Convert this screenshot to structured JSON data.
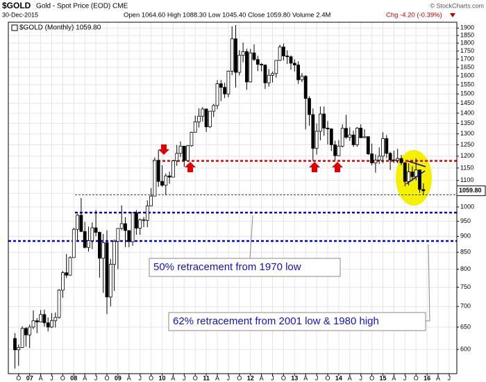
{
  "chart_data": {
    "type": "candlestick",
    "symbol": "$GOLD",
    "title": "Gold - Spot Price (EOD) CME",
    "date": "30-Dec-2015",
    "quote": "Open 1064.60 High 1088.30 Low 1045.40 Close 1059.80 Volume 2.4M",
    "change": "Chg -4.20 (-0.39%)",
    "copyright": "© StockCharts.com",
    "legend": "$GOLD (Monthly) 1059.80",
    "last_price": {
      "value": 1059.8,
      "label": "1059.80"
    },
    "categories": [
      null,
      "O",
      null,
      null,
      "07",
      null,
      null,
      "A",
      null,
      null,
      "J",
      null,
      null,
      "O",
      null,
      null,
      "08",
      null,
      null,
      "A",
      null,
      null,
      "J",
      null,
      null,
      "O",
      null,
      null,
      "09",
      null,
      null,
      "A",
      null,
      null,
      "J",
      null,
      null,
      "O",
      null,
      null,
      "10",
      null,
      null,
      "A",
      null,
      null,
      "J",
      null,
      null,
      "O",
      null,
      null,
      "11",
      null,
      null,
      "A",
      null,
      null,
      "J",
      null,
      null,
      "O",
      null,
      null,
      "12",
      null,
      null,
      "A",
      null,
      null,
      "J",
      null,
      null,
      "O",
      null,
      null,
      "13",
      null,
      null,
      "A",
      null,
      null,
      "J",
      null,
      null,
      "O",
      null,
      null,
      "14",
      null,
      null,
      "A",
      null,
      null,
      "J",
      null,
      null,
      "O",
      null,
      null,
      "15",
      null,
      null,
      "A",
      null,
      null,
      "J",
      null,
      null,
      "O",
      null,
      null,
      "16",
      null,
      null,
      "A",
      null,
      null,
      "J"
    ],
    "open": [
      624,
      599,
      604,
      647,
      632,
      650,
      665,
      662,
      680,
      660,
      650,
      665,
      673,
      742,
      790,
      783,
      834,
      923,
      971,
      916,
      865,
      886,
      928,
      913,
      832,
      880,
      724,
      814,
      884,
      926,
      942,
      919,
      883,
      980,
      927,
      955,
      953,
      1004,
      1040,
      1182,
      1096,
      1081,
      1118,
      1113,
      1180,
      1212,
      1244,
      1181,
      1246,
      1307,
      1357,
      1385,
      1421,
      1333,
      1410,
      1439,
      1556,
      1536,
      1500,
      1628,
      1828,
      1621,
      1723,
      1746,
      1566,
      1738,
      1697,
      1668,
      1664,
      1561,
      1604,
      1614,
      1692,
      1775,
      1719,
      1714,
      1675,
      1664,
      1578,
      1598,
      1476,
      1393,
      1234,
      1312,
      1396,
      1327,
      1323,
      1250,
      1202,
      1244,
      1326,
      1284,
      1295,
      1250,
      1327,
      1282,
      1287,
      1210,
      1171,
      1183,
      1200,
      1278,
      1212,
      1184,
      1182,
      1190,
      1172,
      1096,
      1134,
      1115,
      1142,
      1064.6,
      null,
      null,
      null,
      null,
      null,
      null,
      null
    ],
    "high": [
      636,
      611,
      652,
      650,
      656,
      690,
      671,
      691,
      692,
      673,
      683,
      685,
      745,
      795,
      845,
      838,
      929,
      975,
      1033,
      948,
      932,
      946,
      989,
      916,
      908,
      920,
      830,
      890,
      926,
      1006,
      964,
      920,
      980,
      989,
      960,
      965,
      1024,
      1070,
      1195,
      1227,
      1162,
      1128,
      1135,
      1180,
      1249,
      1265,
      1245,
      1249,
      1310,
      1388,
      1424,
      1431,
      1424,
      1412,
      1447,
      1576,
      1577,
      1561,
      1632,
      1912,
      1921,
      1755,
      1804,
      1764,
      1763,
      1792,
      1720,
      1676,
      1667,
      1640,
      1625,
      1693,
      1790,
      1797,
      1754,
      1723,
      1698,
      1686,
      1617,
      1605,
      1488,
      1424,
      1349,
      1434,
      1434,
      1361,
      1327,
      1268,
      1271,
      1345,
      1392,
      1331,
      1315,
      1332,
      1345,
      1322,
      1288,
      1255,
      1208,
      1238,
      1307,
      1294,
      1219,
      1224,
      1232,
      1205,
      1175,
      1170,
      1157,
      1191,
      1143,
      1088.3,
      null,
      null,
      null,
      null,
      null,
      null,
      null
    ],
    "low": [
      560,
      566,
      603,
      606,
      603,
      645,
      636,
      661,
      651,
      640,
      648,
      649,
      670,
      722,
      775,
      782,
      834,
      884,
      914,
      862,
      852,
      860,
      900,
      776,
      735,
      681,
      700,
      740,
      800,
      920,
      866,
      866,
      870,
      905,
      905,
      930,
      930,
      1003,
      1040,
      1075,
      1075,
      1044,
      1087,
      1113,
      1159,
      1196,
      1155,
      1179,
      1241,
      1308,
      1330,
      1358,
      1309,
      1327,
      1381,
      1420,
      1462,
      1478,
      1482,
      1605,
      1535,
      1603,
      1680,
      1523,
      1563,
      1688,
      1628,
      1627,
      1527,
      1540,
      1563,
      1590,
      1688,
      1691,
      1670,
      1636,
      1626,
      1555,
      1565,
      1321,
      1338,
      1180,
      1207,
      1270,
      1291,
      1251,
      1222,
      1182,
      1200,
      1238,
      1277,
      1268,
      1240,
      1241,
      1281,
      1280,
      1205,
      1161,
      1131,
      1167,
      1170,
      1192,
      1142,
      1170,
      1170,
      1162,
      1077,
      1080,
      1098,
      1100,
      1052,
      1045.4,
      null,
      null,
      null,
      null,
      null,
      null,
      null
    ],
    "close": [
      599,
      604,
      647,
      632,
      650,
      665,
      662,
      680,
      660,
      650,
      665,
      673,
      742,
      790,
      783,
      834,
      923,
      971,
      916,
      865,
      886,
      928,
      913,
      832,
      880,
      724,
      814,
      884,
      926,
      942,
      919,
      883,
      980,
      927,
      955,
      953,
      1004,
      1040,
      1182,
      1096,
      1081,
      1118,
      1113,
      1180,
      1212,
      1244,
      1181,
      1246,
      1307,
      1357,
      1385,
      1421,
      1333,
      1410,
      1439,
      1556,
      1536,
      1500,
      1628,
      1828,
      1621,
      1723,
      1746,
      1566,
      1738,
      1697,
      1668,
      1664,
      1561,
      1604,
      1614,
      1692,
      1775,
      1719,
      1714,
      1675,
      1664,
      1578,
      1598,
      1476,
      1393,
      1234,
      1312,
      1396,
      1327,
      1323,
      1250,
      1202,
      1244,
      1326,
      1284,
      1295,
      1250,
      1327,
      1282,
      1287,
      1210,
      1171,
      1183,
      1200,
      1278,
      1212,
      1184,
      1182,
      1190,
      1172,
      1096,
      1134,
      1115,
      1142,
      1065,
      1059.8,
      null,
      null,
      null,
      null,
      null,
      null,
      null
    ],
    "color": "#000000",
    "ylim": [
      550,
      1940
    ],
    "yticks": [
      600,
      650,
      700,
      750,
      800,
      850,
      900,
      950,
      1000,
      1050,
      1100,
      1150,
      1200,
      1250,
      1300,
      1350,
      1400,
      1450,
      1500,
      1550,
      1600,
      1650,
      1700,
      1750,
      1800,
      1850,
      1900
    ],
    "log_scale": true,
    "grid": true,
    "levels": [
      {
        "value": 1180,
        "color": "#e00000"
      },
      {
        "value": 1045,
        "color": "#000000"
      },
      {
        "value": 980,
        "color": "#0000c8"
      },
      {
        "value": 885,
        "color": "#0000c8"
      }
    ],
    "annotations": [
      "50% retracement from 1970 low",
      "62% retracement from 2001 low & 1980 high"
    ]
  }
}
